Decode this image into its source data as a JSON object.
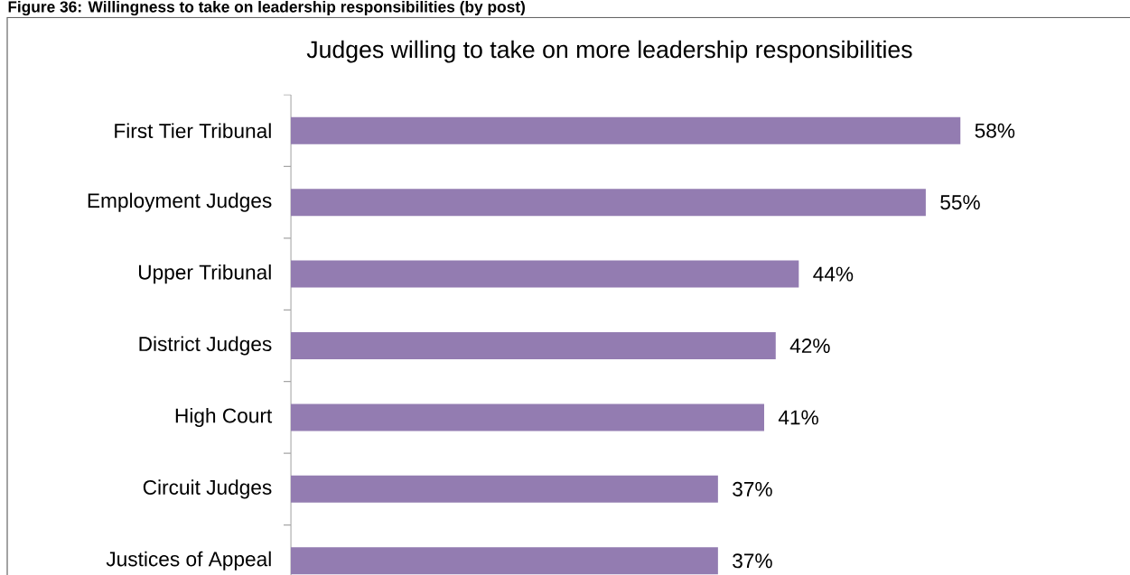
{
  "chart_data": {
    "type": "bar",
    "orientation": "horizontal",
    "title": "Judges willing to take on more leadership responsibilities",
    "annotations": [
      "Figure 36: Willingness to take on leadership responsibilities (by post)"
    ],
    "categories": [
      "First Tier Tribunal",
      "Employment Judges",
      "Upper Tribunal",
      "District Judges",
      "High Court",
      "Circuit Judges",
      "Justices of Appeal"
    ],
    "values": [
      58,
      55,
      44,
      42,
      41,
      37,
      37
    ],
    "value_labels": [
      "58%",
      "55%",
      "44%",
      "42%",
      "41%",
      "37%",
      "37%"
    ],
    "color": "#937cb1"
  }
}
